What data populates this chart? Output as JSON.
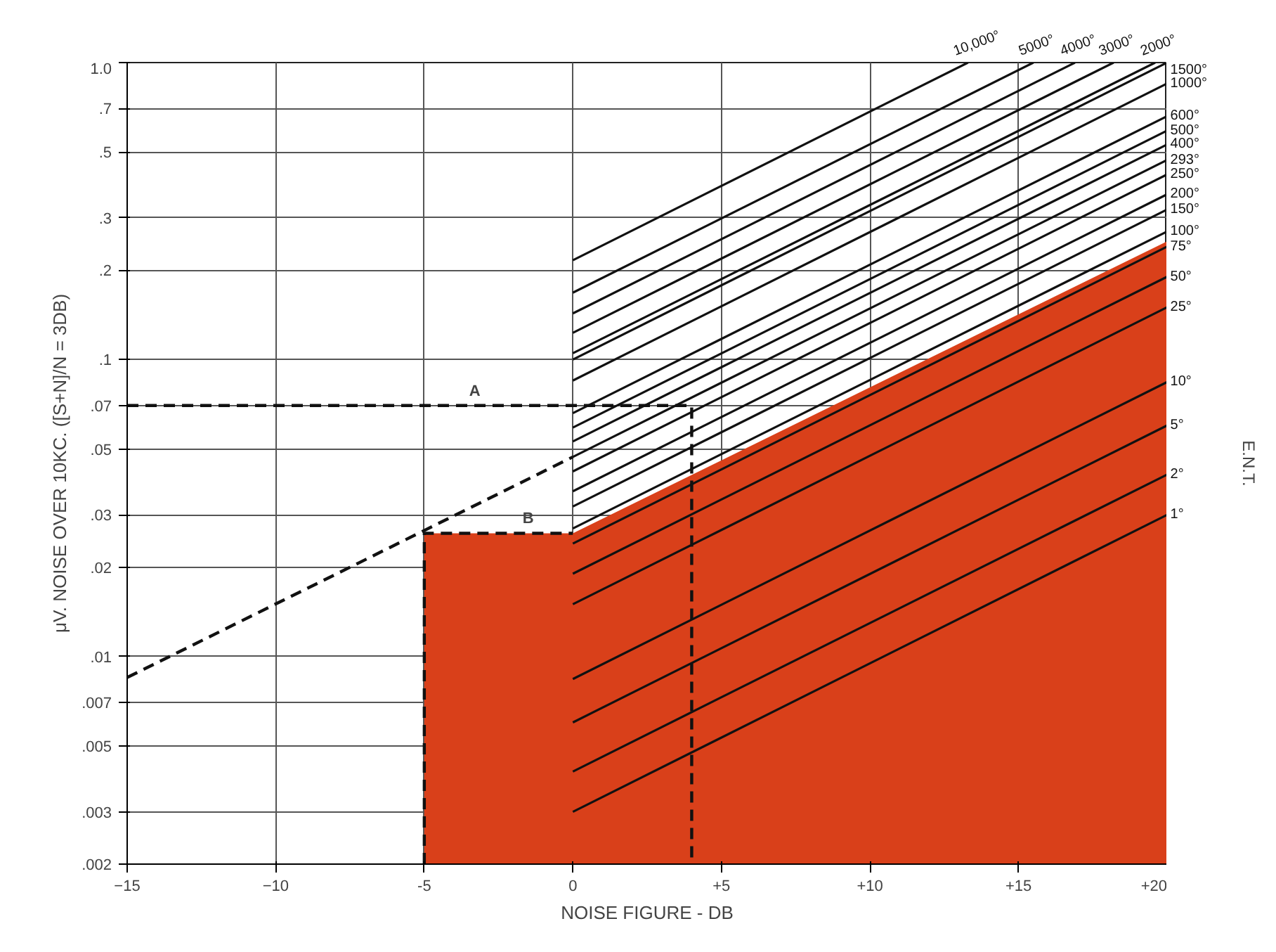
{
  "chart_data": {
    "type": "line",
    "xlabel": "NOISE FIGURE - DB",
    "ylabel": "μV. NOISE OVER 10KC. ([S+N]/N = 3DB)",
    "y2label": "E.N.T.",
    "log": "y",
    "grid": true,
    "marker": "none",
    "xlim": [
      -15,
      20
    ],
    "xticks": [
      -15,
      -10,
      {
        "value": -5,
        "label": "-5"
      },
      0,
      {
        "value": 5,
        "label": "+5"
      },
      {
        "value": 10,
        "label": "+10"
      },
      {
        "value": 15,
        "label": "+15"
      },
      {
        "value": 20,
        "label": "+20"
      }
    ],
    "ylim": [
      0.002,
      1.0
    ],
    "yticks": [
      {
        "value": 0.002,
        "label": ".002"
      },
      {
        "value": 0.003,
        "label": ".003"
      },
      {
        "value": 0.005,
        "label": ".005"
      },
      {
        "value": 0.007,
        "label": ".007"
      },
      {
        "value": 0.01,
        "label": ".01"
      },
      {
        "value": 0.02,
        "label": ".02"
      },
      {
        "value": 0.03,
        "label": ".03"
      },
      {
        "value": 0.05,
        "label": ".05"
      },
      {
        "value": 0.07,
        "label": ".07"
      },
      {
        "value": 0.1,
        "label": ".1"
      },
      {
        "value": 0.2,
        "label": ".2"
      },
      {
        "value": 0.3,
        "label": ".3"
      },
      {
        "value": 0.5,
        "label": ".5"
      },
      {
        "value": 0.7,
        "label": ".7"
      },
      {
        "value": 1.0,
        "label": "1.0"
      }
    ],
    "annotations": [
      {
        "text": "A",
        "x": -3.3,
        "y": 0.07
      },
      {
        "text": "B",
        "x": -1.5,
        "y": 0.026
      }
    ],
    "series": [
      {
        "type": "area",
        "color": "#d9401a",
        "x": [
          -5,
          0,
          20
        ],
        "values": [
          0.026,
          0.026,
          0.25
        ]
      },
      {
        "color": "#111111",
        "line_style": "dashed",
        "x": [
          -15,
          0
        ],
        "values": [
          0.0085,
          0.047
        ]
      },
      {
        "color": "#111111",
        "line_style": "dashed",
        "x": [
          -15,
          4,
          4
        ],
        "values": [
          0.07,
          0.07,
          0.002
        ]
      },
      {
        "color": "#111111",
        "line_style": "dashed",
        "x": [
          -5,
          -5,
          0
        ],
        "values": [
          0.002,
          0.026,
          0.026
        ]
      },
      {
        "name": "10,000°",
        "color": "#111111",
        "x": [
          0,
          13.3
        ],
        "values": [
          0.216,
          1.0
        ]
      },
      {
        "name": "5000°",
        "color": "#111111",
        "x": [
          0,
          15.5
        ],
        "values": [
          0.168,
          1.0
        ]
      },
      {
        "name": "4000°",
        "color": "#111111",
        "x": [
          0,
          16.9
        ],
        "values": [
          0.143,
          1.0
        ]
      },
      {
        "name": "3000°",
        "color": "#111111",
        "x": [
          0,
          18.2
        ],
        "values": [
          0.123,
          1.0
        ]
      },
      {
        "name": "2000°",
        "color": "#111111",
        "x": [
          0,
          19.6
        ],
        "values": [
          0.105,
          1.0
        ]
      },
      {
        "name": "1500°",
        "color": "#111111",
        "x": [
          0,
          20
        ],
        "values": [
          0.1,
          1.0
        ]
      },
      {
        "name": "1000°",
        "color": "#111111",
        "x": [
          0,
          20
        ],
        "values": [
          0.085,
          0.85
        ]
      },
      {
        "name": "600°",
        "color": "#111111",
        "x": [
          0,
          20
        ],
        "values": [
          0.066,
          0.66
        ]
      },
      {
        "name": "500°",
        "color": "#111111",
        "x": [
          0,
          20
        ],
        "values": [
          0.059,
          0.59
        ]
      },
      {
        "name": "400°",
        "color": "#111111",
        "x": [
          0,
          20
        ],
        "values": [
          0.053,
          0.53
        ]
      },
      {
        "name": "293°",
        "color": "#111111",
        "x": [
          0,
          20
        ],
        "values": [
          0.047,
          0.47
        ]
      },
      {
        "name": "250°",
        "color": "#111111",
        "x": [
          0,
          20
        ],
        "values": [
          0.042,
          0.42
        ]
      },
      {
        "name": "200°",
        "color": "#111111",
        "x": [
          0,
          20
        ],
        "values": [
          0.036,
          0.36
        ]
      },
      {
        "name": "150°",
        "color": "#111111",
        "x": [
          0,
          20
        ],
        "values": [
          0.032,
          0.32
        ]
      },
      {
        "name": "100°",
        "color": "#111111",
        "x": [
          0,
          20
        ],
        "values": [
          0.027,
          0.27
        ]
      },
      {
        "name": "75°",
        "color": "#111111",
        "x": [
          0,
          20
        ],
        "values": [
          0.024,
          0.24
        ]
      },
      {
        "name": "50°",
        "color": "#111111",
        "x": [
          0,
          20
        ],
        "values": [
          0.019,
          0.19
        ]
      },
      {
        "name": "25°",
        "color": "#111111",
        "x": [
          0,
          20
        ],
        "values": [
          0.015,
          0.15
        ]
      },
      {
        "name": "10°",
        "color": "#111111",
        "x": [
          0,
          20
        ],
        "values": [
          0.0084,
          0.084
        ]
      },
      {
        "name": "5°",
        "color": "#111111",
        "x": [
          0,
          20
        ],
        "values": [
          0.006,
          0.06
        ]
      },
      {
        "name": "2°",
        "color": "#111111",
        "x": [
          0,
          20
        ],
        "values": [
          0.0041,
          0.041
        ]
      },
      {
        "name": "1°",
        "color": "#111111",
        "x": [
          0,
          20
        ],
        "values": [
          0.003,
          0.03
        ]
      }
    ]
  }
}
